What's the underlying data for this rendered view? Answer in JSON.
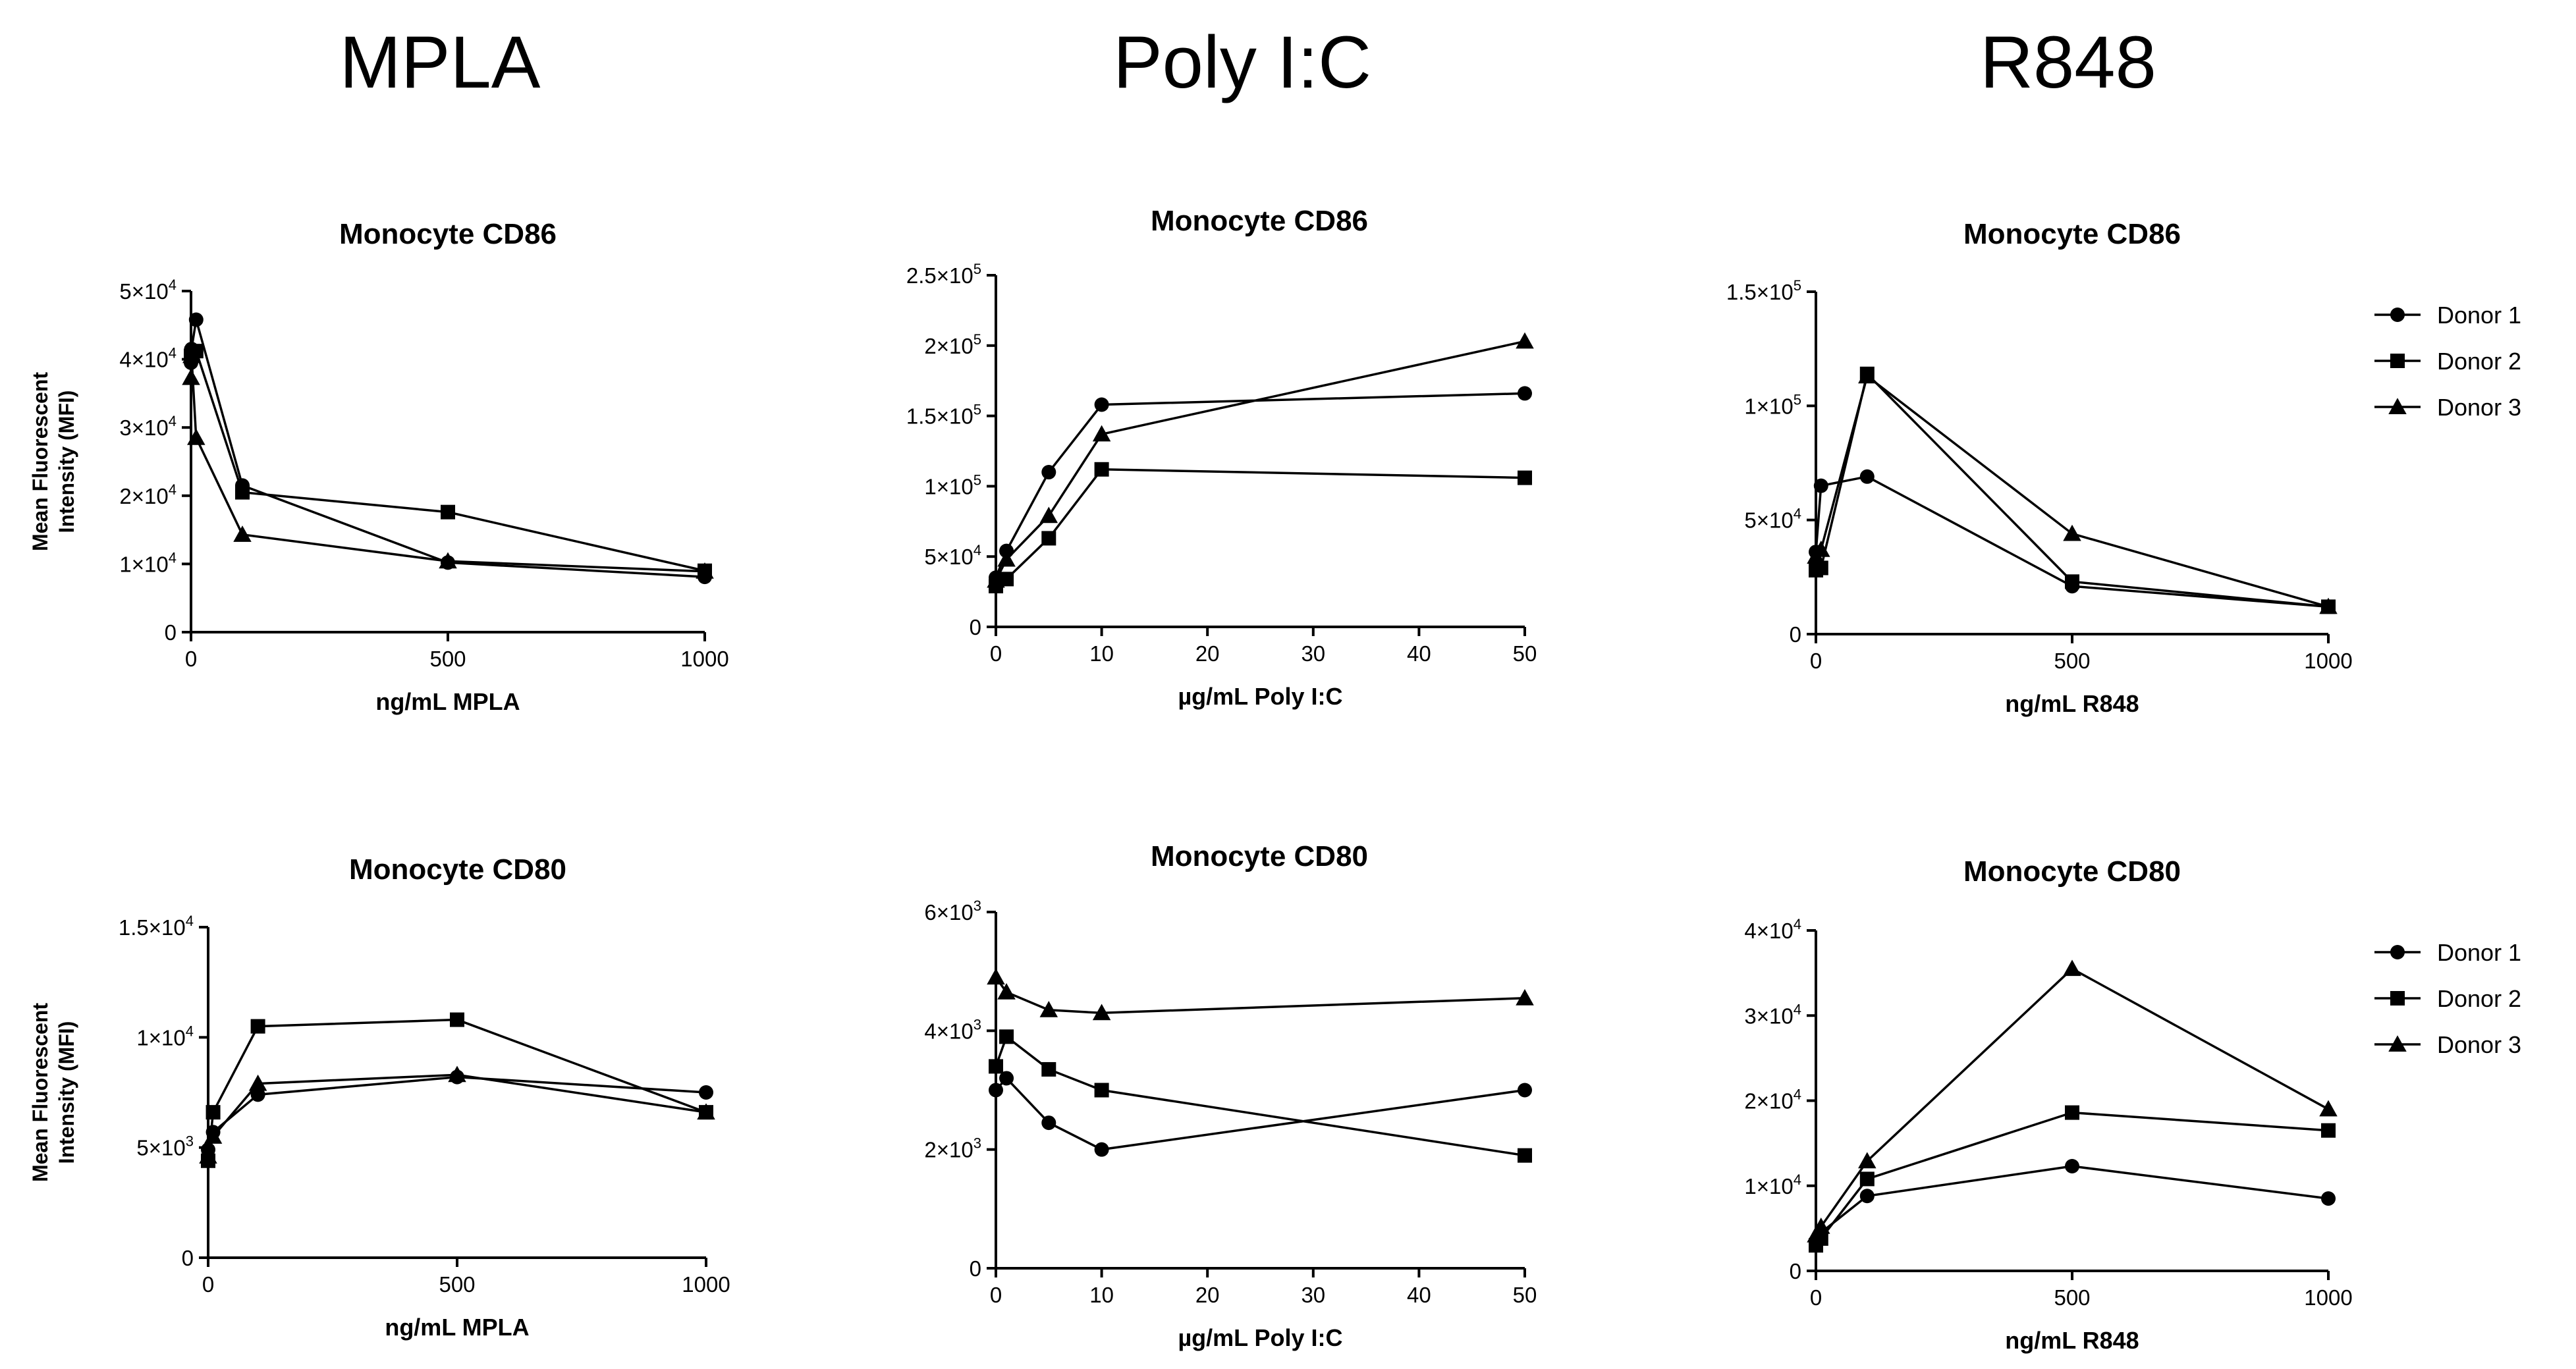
{
  "columns": [
    "MPLA",
    "Poly I:C",
    "R848"
  ],
  "legend": [
    "Donor 1",
    "Donor 2",
    "Donor 3"
  ],
  "chart_data": [
    {
      "type": "line",
      "title": "Monocyte  CD86",
      "xlabel": "ng/mL MPLA",
      "ylabel": [
        "Mean Fluorescent",
        "Intensity  (MFI)"
      ],
      "xlim": [
        0,
        1000
      ],
      "ylim": [
        0,
        50000
      ],
      "xticks": [
        0,
        500,
        1000
      ],
      "yticks": [
        0,
        10000,
        20000,
        30000,
        40000,
        50000
      ],
      "ytick_labels": [
        "0",
        "1×10^4",
        "2×10^4",
        "3×10^4",
        "4×10^4",
        "5×10^4"
      ],
      "series": [
        {
          "name": "Donor 1",
          "marker": "circle",
          "x": [
            0,
            1,
            10,
            100,
            500,
            1000
          ],
          "y": [
            39500,
            41500,
            45800,
            21500,
            10200,
            8100
          ]
        },
        {
          "name": "Donor 2",
          "marker": "square",
          "x": [
            0,
            1,
            10,
            100,
            500,
            1000
          ],
          "y": [
            40500,
            40800,
            41200,
            20500,
            17600,
            9000
          ]
        },
        {
          "name": "Donor 3",
          "marker": "triangle",
          "x": [
            0,
            1,
            10,
            100,
            500,
            1000
          ],
          "y": [
            37300,
            40500,
            28500,
            14300,
            10400,
            8900
          ]
        }
      ]
    },
    {
      "type": "line",
      "title": "Monocyte  CD86",
      "xlabel": "µg/mL Poly  I:C",
      "ylabel": [],
      "xlim": [
        0,
        50
      ],
      "ylim": [
        0,
        250000
      ],
      "xticks": [
        0,
        10,
        20,
        30,
        40,
        50
      ],
      "yticks": [
        0,
        50000,
        100000,
        150000,
        200000,
        250000
      ],
      "ytick_labels": [
        "0",
        "5×10^4",
        "1×10^5",
        "1.5×10^5",
        "2×10^5",
        "2.5×10^5"
      ],
      "series": [
        {
          "name": "Donor 1",
          "marker": "circle",
          "x": [
            0,
            1,
            5,
            10,
            50
          ],
          "y": [
            35000,
            54000,
            110000,
            158000,
            166000
          ]
        },
        {
          "name": "Donor 2",
          "marker": "square",
          "x": [
            0,
            1,
            5,
            10,
            50
          ],
          "y": [
            29000,
            34000,
            63000,
            112000,
            106000
          ]
        },
        {
          "name": "Donor 3",
          "marker": "triangle",
          "x": [
            0,
            1,
            5,
            10,
            50
          ],
          "y": [
            33000,
            48000,
            79000,
            137000,
            203000
          ]
        }
      ]
    },
    {
      "type": "line",
      "title": "Monocyte  CD86",
      "xlabel": "ng/mL R848",
      "ylabel": [],
      "xlim": [
        0,
        1000
      ],
      "ylim": [
        0,
        150000
      ],
      "xticks": [
        0,
        500,
        1000
      ],
      "yticks": [
        0,
        50000,
        100000,
        150000
      ],
      "ytick_labels": [
        "0",
        "5×10^4",
        "1×10^5",
        "1.5×10^5"
      ],
      "legend": true,
      "series": [
        {
          "name": "Donor 1",
          "marker": "circle",
          "x": [
            0,
            10,
            100,
            500,
            1000
          ],
          "y": [
            36000,
            65000,
            69000,
            21000,
            12000
          ]
        },
        {
          "name": "Donor 2",
          "marker": "square",
          "x": [
            0,
            10,
            100,
            500,
            1000
          ],
          "y": [
            28000,
            29000,
            114000,
            23000,
            12000
          ]
        },
        {
          "name": "Donor 3",
          "marker": "triangle",
          "x": [
            0,
            10,
            100,
            500,
            1000
          ],
          "y": [
            34000,
            37000,
            113000,
            44000,
            12000
          ]
        }
      ]
    },
    {
      "type": "line",
      "title": "Monocyte  CD80",
      "xlabel": "ng/mL MPLA",
      "ylabel": [
        "Mean Fluorescent",
        "Intensity  (MFI)"
      ],
      "xlim": [
        0,
        1000
      ],
      "ylim": [
        0,
        15000
      ],
      "xticks": [
        0,
        500,
        1000
      ],
      "yticks": [
        0,
        5000,
        10000,
        15000
      ],
      "ytick_labels": [
        "0",
        "5×10^3",
        "1×10^4",
        "1.5×10^4"
      ],
      "series": [
        {
          "name": "Donor 1",
          "marker": "circle",
          "x": [
            0,
            10,
            100,
            500,
            1000
          ],
          "y": [
            4900,
            5700,
            7400,
            8200,
            7500
          ]
        },
        {
          "name": "Donor 2",
          "marker": "square",
          "x": [
            0,
            10,
            100,
            500,
            1000
          ],
          "y": [
            4400,
            6600,
            10500,
            10800,
            6600
          ]
        },
        {
          "name": "Donor 3",
          "marker": "triangle",
          "x": [
            0,
            10,
            100,
            500,
            1000
          ],
          "y": [
            4600,
            5500,
            7900,
            8300,
            6600
          ]
        }
      ]
    },
    {
      "type": "line",
      "title": "Monocyte  CD80",
      "xlabel": "µg/mL Poly  I:C",
      "ylabel": [],
      "xlim": [
        0,
        50
      ],
      "ylim": [
        0,
        6000
      ],
      "xticks": [
        0,
        10,
        20,
        30,
        40,
        50
      ],
      "yticks": [
        0,
        2000,
        4000,
        6000
      ],
      "ytick_labels": [
        "0",
        "2×10^3",
        "4×10^3",
        "6×10^3"
      ],
      "series": [
        {
          "name": "Donor 1",
          "marker": "circle",
          "x": [
            0,
            1,
            5,
            10,
            50
          ],
          "y": [
            3000,
            3200,
            2450,
            2000,
            3000
          ]
        },
        {
          "name": "Donor 2",
          "marker": "square",
          "x": [
            0,
            1,
            5,
            10,
            50
          ],
          "y": [
            3400,
            3900,
            3350,
            3000,
            1900
          ]
        },
        {
          "name": "Donor 3",
          "marker": "triangle",
          "x": [
            0,
            1,
            5,
            10,
            50
          ],
          "y": [
            4900,
            4650,
            4350,
            4300,
            4550
          ]
        }
      ]
    },
    {
      "type": "line",
      "title": "Monocyte  CD80",
      "xlabel": "ng/mL R848",
      "ylabel": [],
      "xlim": [
        0,
        1000
      ],
      "ylim": [
        0,
        40000
      ],
      "xticks": [
        0,
        500,
        1000
      ],
      "yticks": [
        0,
        10000,
        20000,
        30000,
        40000
      ],
      "ytick_labels": [
        "0",
        "1×10^4",
        "2×10^4",
        "3×10^4",
        "4×10^4"
      ],
      "legend": true,
      "series": [
        {
          "name": "Donor 1",
          "marker": "circle",
          "x": [
            0,
            10,
            100,
            500,
            1000
          ],
          "y": [
            3500,
            4500,
            8800,
            12300,
            8500
          ]
        },
        {
          "name": "Donor 2",
          "marker": "square",
          "x": [
            0,
            10,
            100,
            500,
            1000
          ],
          "y": [
            3000,
            3800,
            10800,
            18600,
            16500
          ]
        },
        {
          "name": "Donor 3",
          "marker": "triangle",
          "x": [
            0,
            10,
            100,
            500,
            1000
          ],
          "y": [
            4200,
            5200,
            12900,
            35500,
            19000
          ]
        }
      ]
    }
  ]
}
